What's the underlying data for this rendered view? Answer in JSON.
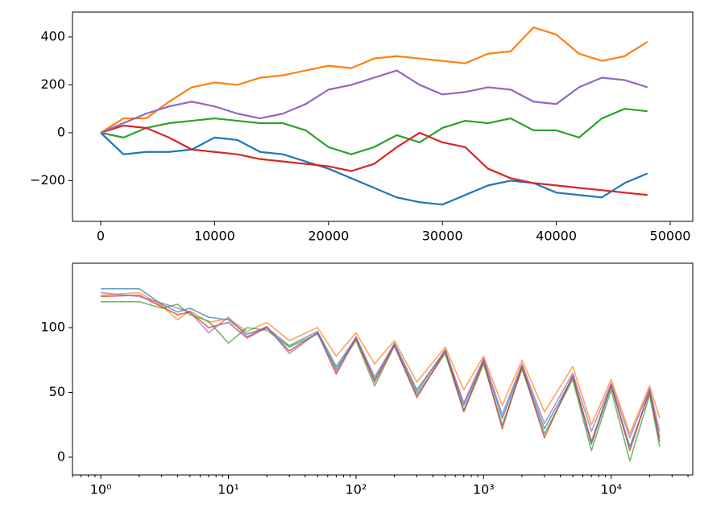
{
  "chart_data": [
    {
      "type": "line",
      "x": [
        0,
        2000,
        4000,
        6000,
        8000,
        10000,
        12000,
        14000,
        16000,
        18000,
        20000,
        22000,
        24000,
        26000,
        28000,
        30000,
        32000,
        34000,
        36000,
        38000,
        40000,
        42000,
        44000,
        46000,
        48000
      ],
      "series": [
        {
          "color": "#1f77b4",
          "values": [
            0,
            -90,
            -80,
            -80,
            -70,
            -20,
            -30,
            -80,
            -90,
            -120,
            -150,
            -190,
            -230,
            -270,
            -290,
            -300,
            -260,
            -220,
            -200,
            -210,
            -250,
            -260,
            -270,
            -210,
            -170
          ]
        },
        {
          "color": "#ff7f0e",
          "values": [
            0,
            60,
            60,
            130,
            190,
            210,
            200,
            230,
            240,
            260,
            280,
            270,
            310,
            320,
            310,
            300,
            290,
            330,
            340,
            440,
            410,
            330,
            300,
            320,
            380
          ]
        },
        {
          "color": "#2ca02c",
          "values": [
            0,
            -20,
            20,
            40,
            50,
            60,
            50,
            40,
            40,
            10,
            -60,
            -90,
            -60,
            -10,
            -40,
            20,
            50,
            40,
            60,
            10,
            10,
            -20,
            60,
            100,
            90
          ]
        },
        {
          "color": "#d62728",
          "values": [
            0,
            30,
            20,
            -20,
            -70,
            -80,
            -90,
            -110,
            -120,
            -130,
            -140,
            -160,
            -130,
            -60,
            0,
            -40,
            -60,
            -150,
            -190,
            -210,
            -220,
            -230,
            -240,
            -250,
            -260
          ]
        },
        {
          "color": "#9467bd",
          "values": [
            0,
            40,
            80,
            110,
            130,
            110,
            80,
            60,
            80,
            120,
            180,
            200,
            230,
            260,
            200,
            160,
            170,
            190,
            180,
            130,
            120,
            190,
            230,
            220,
            190
          ]
        }
      ],
      "xlim": [
        -2475,
        51980
      ],
      "xticks": [
        0,
        10000,
        20000,
        30000,
        40000,
        50000
      ],
      "ylim": [
        -370,
        504
      ],
      "yticks": [
        {
          "value": -200,
          "label": "−200"
        },
        0,
        200,
        400
      ],
      "line_width": 2.2
    },
    {
      "type": "line",
      "xscale": "log",
      "x": [
        1,
        2,
        3,
        4,
        5,
        7,
        10,
        14,
        20,
        30,
        50,
        70,
        100,
        140,
        200,
        300,
        500,
        700,
        1000,
        1400,
        2000,
        3000,
        5000,
        7000,
        10000,
        14000,
        20000,
        24000
      ],
      "series": [
        {
          "color": "#1f77b4",
          "values": [
            130,
            130,
            118,
            112,
            115,
            108,
            106,
            95,
            100,
            86,
            97,
            70,
            92,
            60,
            88,
            52,
            82,
            40,
            75,
            30,
            70,
            22,
            62,
            10,
            55,
            8,
            50,
            15
          ]
        },
        {
          "color": "#ff7f0e",
          "values": [
            125,
            127,
            117,
            106,
            113,
            104,
            107,
            97,
            104,
            90,
            100,
            78,
            96,
            72,
            90,
            58,
            85,
            52,
            78,
            40,
            75,
            35,
            70,
            25,
            60,
            18,
            55,
            30
          ]
        },
        {
          "color": "#2ca02c",
          "values": [
            120,
            120,
            115,
            118,
            110,
            105,
            88,
            100,
            98,
            85,
            95,
            68,
            90,
            55,
            86,
            48,
            80,
            35,
            72,
            25,
            68,
            18,
            60,
            5,
            52,
            -3,
            48,
            8
          ]
        },
        {
          "color": "#d62728",
          "values": [
            124,
            125,
            116,
            110,
            112,
            100,
            104,
            92,
            100,
            82,
            96,
            64,
            92,
            58,
            86,
            46,
            82,
            36,
            74,
            22,
            70,
            15,
            63,
            12,
            56,
            5,
            52,
            12
          ]
        },
        {
          "color": "#9467bd",
          "values": [
            127,
            124,
            119,
            115,
            112,
            96,
            108,
            93,
            101,
            80,
            96,
            66,
            93,
            62,
            87,
            50,
            83,
            42,
            76,
            33,
            72,
            26,
            65,
            20,
            57,
            15,
            53,
            20
          ]
        }
      ],
      "xlim": [
        0.6,
        43600
      ],
      "xticks": [
        {
          "value": 1,
          "label": "10⁰"
        },
        {
          "value": 10,
          "label": "10¹"
        },
        {
          "value": 100,
          "label": "10²"
        },
        {
          "value": 1000,
          "label": "10³"
        },
        {
          "value": 10000,
          "label": "10⁴"
        }
      ],
      "ylim": [
        -13.7,
        149.7
      ],
      "yticks": [
        0,
        50,
        100
      ],
      "alpha": 0.7,
      "line_width": 1.6
    }
  ]
}
